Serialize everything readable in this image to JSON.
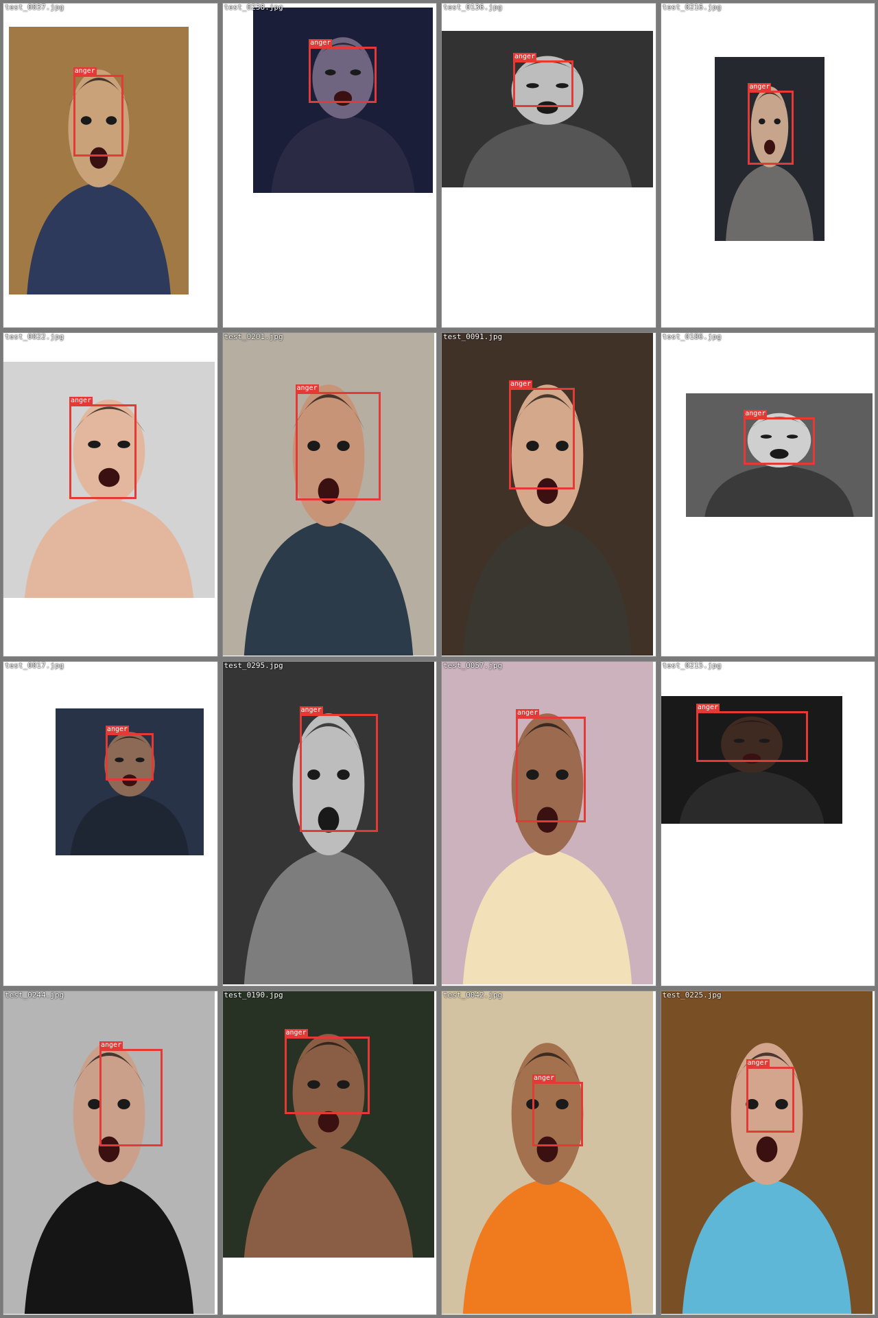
{
  "grid": {
    "cells": [
      {
        "filename": "test_0037.jpg",
        "label": "anger",
        "bg": "#b88a4e",
        "fg": "#c9a27a",
        "shirt": "#2d3a5c",
        "mono": false
      },
      {
        "filename": "test_0238.jpg",
        "label": "anger",
        "bg": "#1f2340",
        "fg": "#6f6580",
        "shirt": "#2a2a45",
        "mono": false
      },
      {
        "filename": "test_0136.jpg",
        "label": "anger",
        "bg": "#3a3a3a",
        "fg": "#bdbdbd",
        "shirt": "#555555",
        "mono": true
      },
      {
        "filename": "test_0216.jpg",
        "label": "anger",
        "bg": "#2b2f36",
        "fg": "#c7a58c",
        "shirt": "#6d6a6a",
        "mono": false
      },
      {
        "filename": "test_0022.jpg",
        "label": "anger",
        "bg": "#f1f1f1",
        "fg": "#e2b79d",
        "shirt": "#e2b79d",
        "mono": false
      },
      {
        "filename": "test_0201.jpg",
        "label": "anger",
        "bg": "#cfc6b8",
        "fg": "#c79478",
        "shirt": "#2b3b4a",
        "mono": false
      },
      {
        "filename": "test_0091.jpg",
        "label": "anger",
        "bg": "#4b3a2e",
        "fg": "#d4a98b",
        "shirt": "#3a3630",
        "mono": false
      },
      {
        "filename": "test_0186.jpg",
        "label": "anger",
        "bg": "#6b6b6b",
        "fg": "#cfcfcf",
        "shirt": "#3a3a3a",
        "mono": true
      },
      {
        "filename": "test_0017.jpg",
        "label": "anger",
        "bg": "#2f3b52",
        "fg": "#8c6a55",
        "shirt": "#1e2533",
        "mono": false
      },
      {
        "filename": "test_0295.jpg",
        "label": "anger",
        "bg": "#3d3d3d",
        "fg": "#bdbdbd",
        "shirt": "#7d7d7d",
        "mono": true
      },
      {
        "filename": "test_0057.jpg",
        "label": "anger",
        "bg": "#e7cbd8",
        "fg": "#9b6a4f",
        "shirt": "#f1e0b8",
        "mono": false
      },
      {
        "filename": "test_0215.jpg",
        "label": "anger",
        "bg": "#1d1d1d",
        "fg": "#3f2a22",
        "shirt": "#2a2a2a",
        "mono": false
      },
      {
        "filename": "test_0244.jpg",
        "label": "anger",
        "bg": "#cfcfcf",
        "fg": "#caa08a",
        "shirt": "#151515",
        "mono": false
      },
      {
        "filename": "test_0190.jpg",
        "label": "anger",
        "bg": "#2e3a2a",
        "fg": "#8a5e44",
        "shirt": "#8a5e44",
        "mono": false
      },
      {
        "filename": "test_0042.jpg",
        "label": "anger",
        "bg": "#f0ddb8",
        "fg": "#a4714f",
        "shirt": "#f07a1e",
        "mono": false
      },
      {
        "filename": "test_0225.jpg",
        "label": "anger",
        "bg": "#8a5a2c",
        "fg": "#d2a58c",
        "shirt": "#5fb7d8",
        "mono": false
      }
    ]
  }
}
